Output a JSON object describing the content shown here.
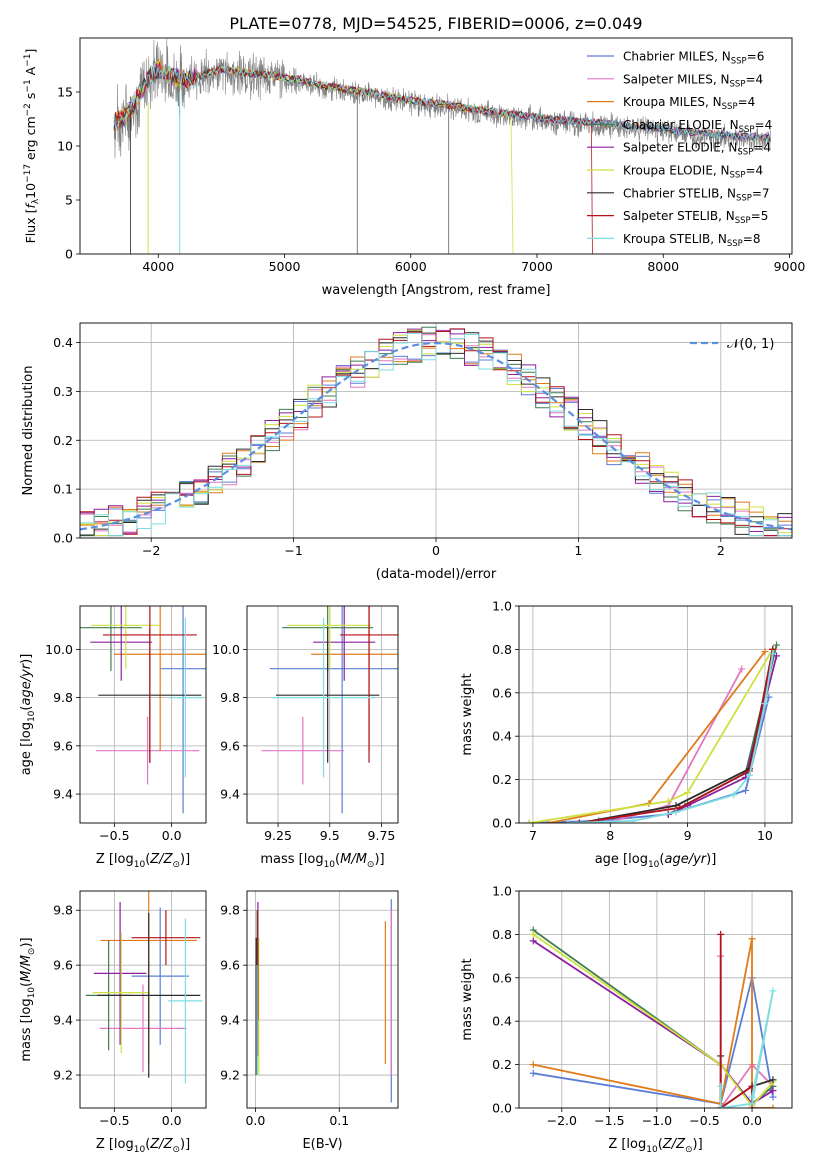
{
  "figure": {
    "title": "PLATE=0778, MJD=54525, FIBERID=0006, z=0.049"
  },
  "colors": {
    "Chabrier MILES": "#5b7fd6",
    "Salpeter MILES": "#e377c2",
    "Kroupa MILES": "#e07b1a",
    "Chabrier ELODIE": "#3e7d52",
    "Salpeter ELODIE": "#8e1f9e",
    "Kroupa ELODIE": "#cfe040",
    "Chabrier STELIB": "#2b2b2b",
    "Salpeter STELIB": "#b3121a",
    "Kroupa STELIB": "#7fdde0",
    "data": "#808080",
    "normal": "#5b8fe0"
  },
  "chart_data": [
    {
      "id": "spectrum",
      "type": "line",
      "xlabel": "wavelength [Angstrom, rest frame]",
      "ylabel": "Flux [fλ10⁻¹⁷ erg cm⁻² s⁻¹ A⁻¹]",
      "xlim": [
        3380,
        9020
      ],
      "ylim": [
        0,
        20
      ],
      "xticks": [
        4000,
        5000,
        6000,
        7000,
        8000,
        9000
      ],
      "yticks": [
        0,
        5,
        10,
        15
      ],
      "legend": "top-right",
      "grid": false,
      "series": [
        {
          "name": "Chabrier MILES, N_SSP=6",
          "label": "Chabrier MILES, N",
          "sub": "SSP",
          "tail": "=6",
          "key": "Chabrier MILES"
        },
        {
          "name": "Salpeter MILES, N_SSP=4",
          "label": "Salpeter MILES, N",
          "sub": "SSP",
          "tail": "=4",
          "key": "Salpeter MILES"
        },
        {
          "name": "Kroupa MILES, N_SSP=4",
          "label": "Kroupa MILES, N",
          "sub": "SSP",
          "tail": "=4",
          "key": "Kroupa MILES"
        },
        {
          "name": "Chabrier ELODIE, N_SSP=4",
          "label": "Chabrier ELODIE, N",
          "sub": "SSP",
          "tail": "=4",
          "key": "Chabrier ELODIE"
        },
        {
          "name": "Salpeter ELODIE, N_SSP=4",
          "label": "Salpeter ELODIE, N",
          "sub": "SSP",
          "tail": "=4",
          "key": "Salpeter ELODIE"
        },
        {
          "name": "Kroupa ELODIE, N_SSP=4",
          "label": "Kroupa ELODIE, N",
          "sub": "SSP",
          "tail": "=4",
          "key": "Kroupa ELODIE"
        },
        {
          "name": "Chabrier STELIB, N_SSP=7",
          "label": "Chabrier STELIB, N",
          "sub": "SSP",
          "tail": "=7",
          "key": "Chabrier STELIB"
        },
        {
          "name": "Salpeter STELIB, N_SSP=5",
          "label": "Salpeter STELIB, N",
          "sub": "SSP",
          "tail": "=5",
          "key": "Salpeter STELIB"
        },
        {
          "name": "Kroupa STELIB, N_SSP=8",
          "label": "Kroupa STELIB, N",
          "sub": "SSP",
          "tail": "=8",
          "key": "Kroupa STELIB"
        }
      ],
      "continuum": [
        [
          3650,
          12.0
        ],
        [
          3750,
          12.6
        ],
        [
          3850,
          14.6
        ],
        [
          3950,
          16.6
        ],
        [
          4000,
          17.0
        ],
        [
          4100,
          16.2
        ],
        [
          4200,
          16.0
        ],
        [
          4300,
          16.2
        ],
        [
          4400,
          16.6
        ],
        [
          4500,
          16.9
        ],
        [
          4700,
          16.6
        ],
        [
          4900,
          16.3
        ],
        [
          5100,
          16.0
        ],
        [
          5300,
          15.4
        ],
        [
          5500,
          15.0
        ],
        [
          5700,
          14.7
        ],
        [
          5900,
          14.2
        ],
        [
          6100,
          13.9
        ],
        [
          6300,
          13.6
        ],
        [
          6500,
          13.2
        ],
        [
          6700,
          12.9
        ],
        [
          6900,
          12.6
        ],
        [
          7100,
          12.3
        ],
        [
          7300,
          12.1
        ],
        [
          7430,
          12.0
        ],
        [
          7700,
          11.7
        ],
        [
          8000,
          11.4
        ],
        [
          8300,
          11.0
        ],
        [
          8600,
          10.7
        ],
        [
          8800,
          10.6
        ],
        [
          8850,
          10.6
        ]
      ],
      "sky_lines": [
        5577,
        6300
      ],
      "model_ends": {
        "Salpeter STELIB": 7430,
        "Kroupa ELODIE": 6800
      }
    },
    {
      "id": "residuals",
      "type": "step",
      "xlabel": "(data-model)/error",
      "ylabel": "Normed distribution",
      "xlim": [
        -2.5,
        2.5
      ],
      "ylim": [
        0,
        0.44
      ],
      "xticks": [
        -2,
        -1,
        0,
        1,
        2
      ],
      "yticks": [
        0.0,
        0.1,
        0.2,
        0.3,
        0.4
      ],
      "grid": true,
      "legend": "top-right",
      "reference": {
        "name": "𝒩(0, 1)",
        "mean": 0,
        "sigma": 1
      }
    },
    {
      "id": "age-vs-Z",
      "type": "errorbar",
      "xlabel": "Z [log₁₀(Z/Z⊙)]",
      "ylabel": "age  [log₁₀(age/yr)]",
      "xlim": [
        -0.8,
        0.3
      ],
      "ylim": [
        9.28,
        10.18
      ],
      "xticks": [
        -0.5,
        0.0
      ],
      "yticks": [
        9.4,
        9.6,
        9.8,
        10.0
      ],
      "grid": true,
      "points": [
        {
          "key": "Chabrier MILES",
          "x": 0.1,
          "xerr": 0.2,
          "y": 9.92,
          "yerr": 0.6
        },
        {
          "key": "Salpeter MILES",
          "x": -0.21,
          "xerr": 0.45,
          "y": 9.58,
          "yerr": 0.14
        },
        {
          "key": "Kroupa MILES",
          "x": -0.1,
          "xerr": 0.4,
          "y": 9.98,
          "yerr": 0.4
        },
        {
          "key": "Chabrier ELODIE",
          "x": -0.53,
          "xerr": 0.27,
          "y": 10.09,
          "yerr": 0.18
        },
        {
          "key": "Salpeter ELODIE",
          "x": -0.44,
          "xerr": 0.27,
          "y": 10.03,
          "yerr": 0.16
        },
        {
          "key": "Kroupa ELODIE",
          "x": -0.4,
          "xerr": 0.3,
          "y": 10.1,
          "yerr": 0.18
        },
        {
          "key": "Chabrier STELIB",
          "x": -0.19,
          "xerr": 0.45,
          "y": 9.81,
          "yerr": 0.28
        },
        {
          "key": "Salpeter STELIB",
          "x": -0.19,
          "xerr": 0.41,
          "y": 10.06,
          "yerr": 0.53
        },
        {
          "key": "Kroupa STELIB",
          "x": 0.12,
          "xerr": 0.15,
          "y": 9.8,
          "yerr": 0.33
        }
      ]
    },
    {
      "id": "age-vs-mass",
      "type": "errorbar",
      "xlabel": "mass [log₁₀(M/M⊙)]",
      "ylabel": "",
      "xlim": [
        9.1,
        9.83
      ],
      "ylim": [
        9.28,
        10.18
      ],
      "xticks": [
        9.25,
        9.5,
        9.75
      ],
      "yticks": [
        9.4,
        9.6,
        9.8,
        10.0
      ],
      "grid": true,
      "points": [
        {
          "key": "Chabrier MILES",
          "x": 9.56,
          "xerr": 0.35,
          "y": 9.92,
          "yerr": 0.6
        },
        {
          "key": "Salpeter MILES",
          "x": 9.37,
          "xerr": 0.2,
          "y": 9.58,
          "yerr": 0.14
        },
        {
          "key": "Kroupa MILES",
          "x": 9.69,
          "xerr": 0.28,
          "y": 9.98,
          "yerr": 0.4
        },
        {
          "key": "Chabrier ELODIE",
          "x": 9.49,
          "xerr": 0.22,
          "y": 10.09,
          "yerr": 0.18
        },
        {
          "key": "Salpeter ELODIE",
          "x": 9.57,
          "xerr": 0.15,
          "y": 10.03,
          "yerr": 0.16
        },
        {
          "key": "Kroupa ELODIE",
          "x": 9.5,
          "xerr": 0.2,
          "y": 10.1,
          "yerr": 0.18
        },
        {
          "key": "Chabrier STELIB",
          "x": 9.49,
          "xerr": 0.25,
          "y": 9.81,
          "yerr": 0.28
        },
        {
          "key": "Salpeter STELIB",
          "x": 9.69,
          "xerr": 0.14,
          "y": 10.06,
          "yerr": 0.53
        },
        {
          "key": "Kroupa STELIB",
          "x": 9.47,
          "xerr": 0.25,
          "y": 9.8,
          "yerr": 0.33
        }
      ]
    },
    {
      "id": "weight-vs-age",
      "type": "line",
      "xlabel": "age  [log₁₀(age/yr)]",
      "ylabel": "mass weight",
      "xlim": [
        6.82,
        10.35
      ],
      "ylim": [
        0,
        1.0
      ],
      "xticks": [
        7,
        8,
        9,
        10
      ],
      "yticks": [
        0.0,
        0.2,
        0.4,
        0.6,
        0.8,
        1.0
      ],
      "grid": true,
      "series": [
        {
          "key": "Chabrier MILES",
          "x": [
            6.95,
            7.85,
            8.75,
            9.75,
            10.05
          ],
          "y": [
            0.0,
            0.01,
            0.04,
            0.15,
            0.58
          ]
        },
        {
          "key": "Salpeter MILES",
          "x": [
            7.95,
            8.75,
            9.7
          ],
          "y": [
            0.0,
            0.08,
            0.71
          ]
        },
        {
          "key": "Kroupa MILES",
          "x": [
            7.2,
            8.5,
            10.0
          ],
          "y": [
            0.0,
            0.09,
            0.79
          ]
        },
        {
          "key": "Chabrier ELODIE",
          "x": [
            8.75,
            9.0,
            9.75,
            10.15
          ],
          "y": [
            0.04,
            0.09,
            0.23,
            0.82
          ]
        },
        {
          "key": "Salpeter ELODIE",
          "x": [
            8.75,
            9.0,
            9.75,
            10.15
          ],
          "y": [
            0.04,
            0.08,
            0.21,
            0.77
          ]
        },
        {
          "key": "Kroupa ELODIE",
          "x": [
            6.95,
            8.75,
            9.0,
            10.1
          ],
          "y": [
            0.0,
            0.1,
            0.14,
            0.8
          ]
        },
        {
          "key": "Chabrier STELIB",
          "x": [
            7.6,
            8.85,
            9.8,
            10.1
          ],
          "y": [
            0.0,
            0.08,
            0.25,
            0.8
          ]
        },
        {
          "key": "Salpeter STELIB",
          "x": [
            7.6,
            8.9,
            9.8,
            10.1
          ],
          "y": [
            0.0,
            0.07,
            0.24,
            0.8
          ]
        },
        {
          "key": "Kroupa STELIB",
          "x": [
            7.45,
            8.3,
            8.85,
            9.6,
            9.8,
            10.0,
            10.1
          ],
          "y": [
            0.0,
            0.01,
            0.05,
            0.13,
            0.22,
            0.55,
            0.78
          ]
        }
      ]
    },
    {
      "id": "mass-vs-Z",
      "type": "errorbar",
      "xlabel": "Z [log₁₀(Z/Z⊙)]",
      "ylabel": "mass [log₁₀(M/M⊙)]",
      "xlim": [
        -0.8,
        0.3
      ],
      "ylim": [
        9.08,
        9.87
      ],
      "xticks": [
        -0.5,
        0.0
      ],
      "yticks": [
        9.2,
        9.4,
        9.6,
        9.8
      ],
      "grid": true,
      "points": [
        {
          "key": "Chabrier MILES",
          "x": -0.1,
          "xerr": 0.25,
          "y": 9.56,
          "yerr": 0.25
        },
        {
          "key": "Salpeter MILES",
          "x": -0.25,
          "xerr": 0.38,
          "y": 9.37,
          "yerr": 0.16
        },
        {
          "key": "Kroupa MILES",
          "x": -0.2,
          "xerr": 0.42,
          "y": 9.69,
          "yerr": 0.45
        },
        {
          "key": "Chabrier ELODIE",
          "x": -0.55,
          "xerr": 0.2,
          "y": 9.49,
          "yerr": 0.2
        },
        {
          "key": "Salpeter ELODIE",
          "x": -0.45,
          "xerr": 0.23,
          "y": 9.57,
          "yerr": 0.26
        },
        {
          "key": "Kroupa ELODIE",
          "x": -0.44,
          "xerr": 0.25,
          "y": 9.5,
          "yerr": 0.22
        },
        {
          "key": "Chabrier STELIB",
          "x": -0.2,
          "xerr": 0.45,
          "y": 9.49,
          "yerr": 0.3
        },
        {
          "key": "Salpeter STELIB",
          "x": -0.05,
          "xerr": 0.3,
          "y": 9.7,
          "yerr": 0.1
        },
        {
          "key": "Kroupa STELIB",
          "x": 0.12,
          "xerr": 0.15,
          "y": 9.47,
          "yerr": 0.3
        }
      ]
    },
    {
      "id": "mass-vs-ebv",
      "type": "errorbar",
      "xlabel": "E(B-V)",
      "ylabel": "",
      "xlim": [
        -0.01,
        0.17
      ],
      "ylim": [
        9.08,
        9.87
      ],
      "xticks": [
        0.0,
        0.1
      ],
      "yticks": [
        9.2,
        9.4,
        9.6,
        9.8
      ],
      "grid": true,
      "points": [
        {
          "key": "Chabrier MILES",
          "x": 0.162,
          "xerr": 0,
          "y": 9.47,
          "yerr": 0.37
        },
        {
          "key": "Salpeter MILES",
          "x": 0.162,
          "xerr": 0,
          "y": 9.5,
          "yerr": 0.3
        },
        {
          "key": "Kroupa MILES",
          "x": 0.155,
          "xerr": 0,
          "y": 9.5,
          "yerr": 0.26
        },
        {
          "key": "Chabrier ELODIE",
          "x": 0.002,
          "xerr": 0,
          "y": 9.5,
          "yerr": 0.3
        },
        {
          "key": "Salpeter ELODIE",
          "x": 0.003,
          "xerr": 0,
          "y": 9.55,
          "yerr": 0.28
        },
        {
          "key": "Kroupa ELODIE",
          "x": 0.004,
          "xerr": 0,
          "y": 9.45,
          "yerr": 0.25
        },
        {
          "key": "Chabrier STELIB",
          "x": 0.001,
          "xerr": 0,
          "y": 9.45,
          "yerr": 0.25
        },
        {
          "key": "Salpeter STELIB",
          "x": 0.003,
          "xerr": 0,
          "y": 9.6,
          "yerr": 0.2
        },
        {
          "key": "Kroupa STELIB",
          "x": 0.002,
          "xerr": 0,
          "y": 9.4,
          "yerr": 0.2
        }
      ]
    },
    {
      "id": "weight-vs-Z",
      "type": "line",
      "xlabel": "Z [log₁₀(Z/Z⊙)]",
      "ylabel": "mass weight",
      "xlim": [
        -2.45,
        0.42
      ],
      "ylim": [
        0,
        1.0
      ],
      "xticks": [
        -2.0,
        -1.5,
        -1.0,
        -0.5,
        0.0
      ],
      "yticks": [
        0.0,
        0.2,
        0.4,
        0.6,
        0.8,
        1.0
      ],
      "grid": true,
      "series": [
        {
          "key": "Chabrier MILES",
          "x": [
            -2.3,
            -0.33,
            0.0,
            0.22
          ],
          "y": [
            0.16,
            0.02,
            0.6,
            0.05
          ]
        },
        {
          "key": "Salpeter MILES",
          "x": [
            -0.33,
            -0.33,
            0.0,
            0.22
          ],
          "y": [
            0.7,
            0.0,
            0.2,
            0.1
          ]
        },
        {
          "key": "Kroupa MILES",
          "x": [
            -2.3,
            -0.33,
            0.0,
            0.0,
            0.22
          ],
          "y": [
            0.2,
            0.02,
            0.78,
            0.0,
            0.0
          ]
        },
        {
          "key": "Chabrier ELODIE",
          "x": [
            -2.3,
            -0.33,
            0.0,
            0.22
          ],
          "y": [
            0.82,
            0.2,
            0.02,
            0.1
          ]
        },
        {
          "key": "Salpeter ELODIE",
          "x": [
            -2.3,
            -0.33,
            0.0,
            0.22
          ],
          "y": [
            0.77,
            0.2,
            0.02,
            0.08
          ]
        },
        {
          "key": "Kroupa ELODIE",
          "x": [
            -2.3,
            -0.33,
            0.0,
            0.22
          ],
          "y": [
            0.8,
            0.2,
            0.01,
            0.12
          ]
        },
        {
          "key": "Chabrier STELIB",
          "x": [
            -0.33,
            -0.33,
            0.0,
            0.22
          ],
          "y": [
            0.24,
            0.0,
            0.1,
            0.13
          ]
        },
        {
          "key": "Salpeter STELIB",
          "x": [
            -0.33,
            -0.33,
            0.0,
            0.0
          ],
          "y": [
            0.8,
            0.0,
            0.1,
            0.0
          ]
        },
        {
          "key": "Kroupa STELIB",
          "x": [
            -0.33,
            -0.33,
            0.0,
            0.22,
            0.0
          ],
          "y": [
            0.1,
            0.0,
            0.02,
            0.54,
            0.05
          ]
        }
      ]
    }
  ]
}
